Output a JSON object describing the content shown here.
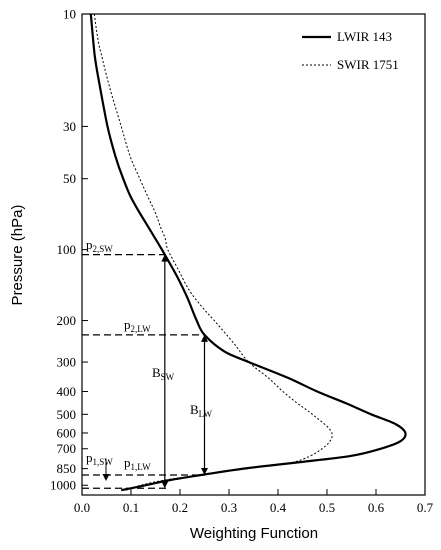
{
  "chart_data": {
    "type": "line",
    "xlabel": "Weighting Function",
    "ylabel": "Pressure (hPa)",
    "xlim": [
      0.0,
      0.7
    ],
    "ylim": [
      10,
      1100
    ],
    "y_scale": "log",
    "y_inverted": true,
    "x_ticks": [
      "0.0",
      "0.1",
      "0.2",
      "0.3",
      "0.4",
      "0.5",
      "0.6",
      "0.7"
    ],
    "y_ticks": [
      "10",
      "30",
      "50",
      "100",
      "200",
      "300",
      "400",
      "500",
      "600",
      "700",
      "850",
      "1000"
    ],
    "legend_position": "top-right",
    "series": [
      {
        "name": "LWIR 143",
        "style": "solid",
        "points": [
          [
            0.018,
            10
          ],
          [
            0.026,
            15
          ],
          [
            0.036,
            20
          ],
          [
            0.052,
            30
          ],
          [
            0.068,
            40
          ],
          [
            0.084,
            50
          ],
          [
            0.1,
            60
          ],
          [
            0.118,
            70
          ],
          [
            0.135,
            80
          ],
          [
            0.163,
            100
          ],
          [
            0.194,
            130
          ],
          [
            0.215,
            160
          ],
          [
            0.234,
            200
          ],
          [
            0.25,
            230
          ],
          [
            0.29,
            270
          ],
          [
            0.34,
            300
          ],
          [
            0.42,
            350
          ],
          [
            0.48,
            400
          ],
          [
            0.54,
            450
          ],
          [
            0.59,
            500
          ],
          [
            0.64,
            550
          ],
          [
            0.66,
            600
          ],
          [
            0.65,
            650
          ],
          [
            0.61,
            700
          ],
          [
            0.55,
            750
          ],
          [
            0.44,
            800
          ],
          [
            0.33,
            850
          ],
          [
            0.25,
            900
          ],
          [
            0.18,
            950
          ],
          [
            0.13,
            1000
          ],
          [
            0.08,
            1050
          ]
        ]
      },
      {
        "name": "SWIR 1751",
        "style": "dotted",
        "points": [
          [
            0.025,
            10
          ],
          [
            0.033,
            13
          ],
          [
            0.04,
            15
          ],
          [
            0.055,
            20
          ],
          [
            0.08,
            30
          ],
          [
            0.098,
            40
          ],
          [
            0.118,
            50
          ],
          [
            0.135,
            60
          ],
          [
            0.15,
            70
          ],
          [
            0.16,
            80
          ],
          [
            0.17,
            90
          ],
          [
            0.175,
            100
          ],
          [
            0.195,
            120
          ],
          [
            0.22,
            150
          ],
          [
            0.25,
            180
          ],
          [
            0.27,
            200
          ],
          [
            0.31,
            250
          ],
          [
            0.34,
            300
          ],
          [
            0.38,
            350
          ],
          [
            0.41,
            400
          ],
          [
            0.44,
            450
          ],
          [
            0.47,
            500
          ],
          [
            0.51,
            600
          ],
          [
            0.49,
            700
          ],
          [
            0.43,
            800
          ],
          [
            0.33,
            850
          ],
          [
            0.25,
            900
          ],
          [
            0.17,
            950
          ],
          [
            0.12,
            1000
          ],
          [
            0.09,
            1050
          ]
        ]
      }
    ],
    "annotations": [
      {
        "text": "p",
        "sub": "2,SW"
      },
      {
        "text": "p",
        "sub": "2,LW"
      },
      {
        "text": "B",
        "sub": "SW"
      },
      {
        "text": "B",
        "sub": "LW"
      },
      {
        "text": "p",
        "sub": "1,SW"
      },
      {
        "text": "p",
        "sub": "1,LW"
      }
    ],
    "reference_lines": {
      "p2_sw": {
        "pressure": 105,
        "weight": 0.175
      },
      "p2_lw": {
        "pressure": 230,
        "weight": 0.25
      },
      "p1_lw": {
        "pressure": 905,
        "weight": 0.25
      },
      "p1_sw": {
        "pressure": 1030,
        "weight": 0.175
      }
    }
  }
}
